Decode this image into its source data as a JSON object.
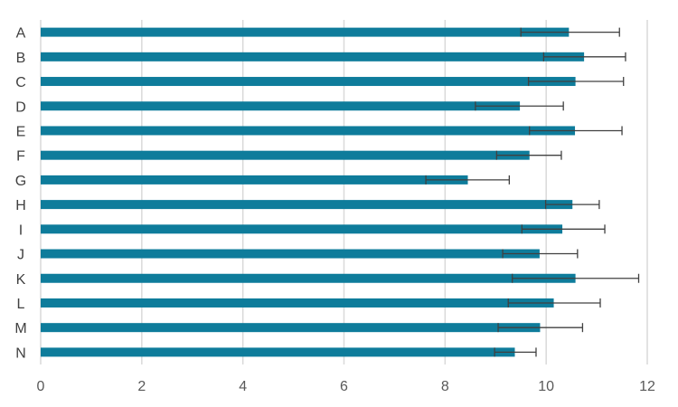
{
  "chart_data": {
    "type": "bar",
    "orientation": "horizontal",
    "categories": [
      "A",
      "B",
      "C",
      "D",
      "E",
      "F",
      "G",
      "H",
      "I",
      "J",
      "K",
      "L",
      "M",
      "N"
    ],
    "values": [
      10.45,
      10.75,
      10.58,
      9.48,
      10.57,
      9.67,
      8.45,
      10.52,
      10.32,
      9.87,
      10.58,
      10.15,
      9.88,
      9.38
    ],
    "error_bars": [
      {
        "minus": 0.95,
        "plus": 1.0
      },
      {
        "minus": 0.8,
        "plus": 0.82
      },
      {
        "minus": 0.93,
        "plus": 0.95
      },
      {
        "minus": 0.88,
        "plus": 0.86
      },
      {
        "minus": 0.9,
        "plus": 0.93
      },
      {
        "minus": 0.65,
        "plus": 0.63
      },
      {
        "minus": 0.83,
        "plus": 0.82
      },
      {
        "minus": 0.53,
        "plus": 0.53
      },
      {
        "minus": 0.8,
        "plus": 0.84
      },
      {
        "minus": 0.73,
        "plus": 0.75
      },
      {
        "minus": 1.25,
        "plus": 1.25
      },
      {
        "minus": 0.9,
        "plus": 0.92
      },
      {
        "minus": 0.83,
        "plus": 0.84
      },
      {
        "minus": 0.4,
        "plus": 0.42
      }
    ],
    "xlim": [
      0,
      12
    ],
    "xticks": [
      "0",
      "2",
      "4",
      "6",
      "8",
      "10",
      "12"
    ],
    "title": "",
    "xlabel": "",
    "ylabel": "",
    "grid": "vertical",
    "legend": "none",
    "colors": {
      "bar": "#0e7c9b",
      "error_bar": "#404040",
      "grid": "#d9d9d9"
    }
  }
}
